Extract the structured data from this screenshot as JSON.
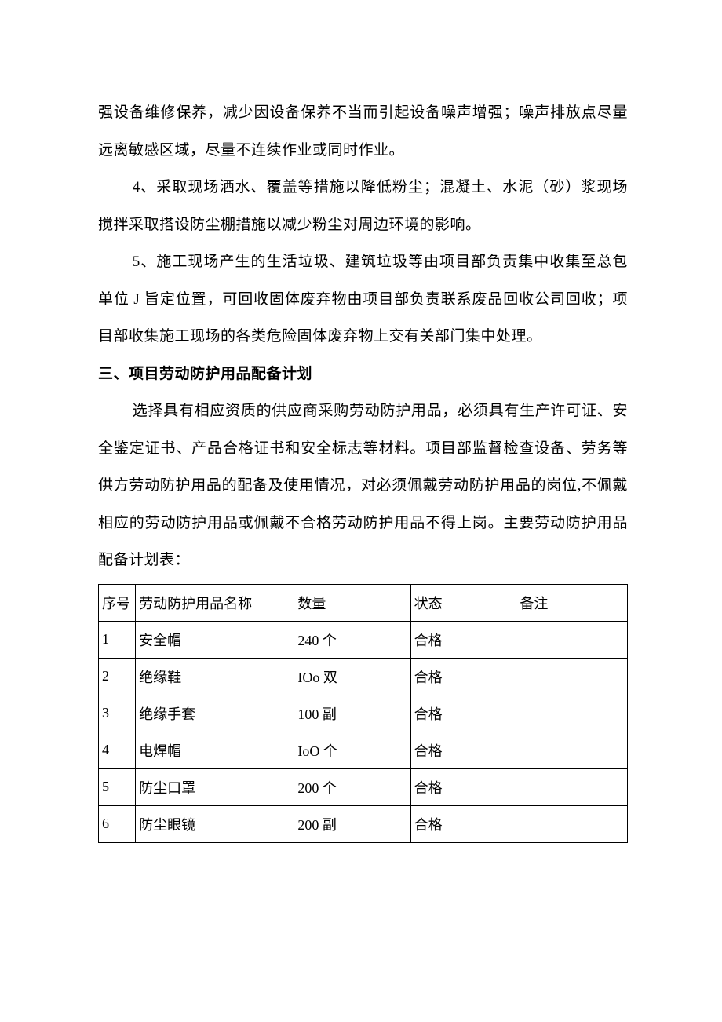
{
  "paragraphs": {
    "p1": "强设备维修保养，减少因设备保养不当而引起设备噪声增强；噪声排放点尽量远离敏感区域，尽量不连续作业或同时作业。",
    "p2": "4、采取现场洒水、覆盖等措施以降低粉尘；混凝土、水泥（砂）浆现场搅拌采取搭设防尘棚措施以减少粉尘对周边环境的影响。",
    "p3": "5、施工现场产生的生活垃圾、建筑垃圾等由项目部负责集中收集至总包单位 J 旨定位置，可回收固体废弃物由项目部负责联系废品回收公司回收；项目部收集施工现场的各类危险固体废弃物上交有关部门集中处理。",
    "heading": "三、项目劳动防护用品配备计划",
    "p4": "选择具有相应资质的供应商采购劳动防护用品，必须具有生产许可证、安全鉴定证书、产品合格证书和安全标志等材料。项目部监督检查设备、劳务等供方劳动防护用品的配备及使用情况，对必须佩戴劳动防护用品的岗位,不佩戴相应的劳动防护用品或佩戴不合格劳动防护用品不得上岗。主要劳动防护用品配备计划表："
  },
  "table": {
    "columns": {
      "seq": "序号",
      "name": "劳动防护用品名称",
      "qty": "数量",
      "status": "状态",
      "note": "备注"
    },
    "rows": [
      {
        "seq": "1",
        "name": "安全帽",
        "qty": "240 个",
        "status": "合格",
        "note": ""
      },
      {
        "seq": "2",
        "name": "绝缘鞋",
        "qty": "IOo 双",
        "status": "合格",
        "note": ""
      },
      {
        "seq": "3",
        "name": "绝缘手套",
        "qty": "100 副",
        "status": "合格",
        "note": ""
      },
      {
        "seq": "4",
        "name": "电焊帽",
        "qty": "IoO 个",
        "status": "合格",
        "note": ""
      },
      {
        "seq": "5",
        "name": "防尘口罩",
        "qty": "200 个",
        "status": "合格",
        "note": ""
      },
      {
        "seq": "6",
        "name": "防尘眼镜",
        "qty": "200 副",
        "status": "合格",
        "note": ""
      }
    ]
  },
  "styles": {
    "background_color": "#ffffff",
    "text_color": "#000000",
    "font_family": "SimSun",
    "body_fontsize": 19,
    "table_fontsize": 18,
    "line_height": 2.5,
    "border_color": "#000000"
  }
}
